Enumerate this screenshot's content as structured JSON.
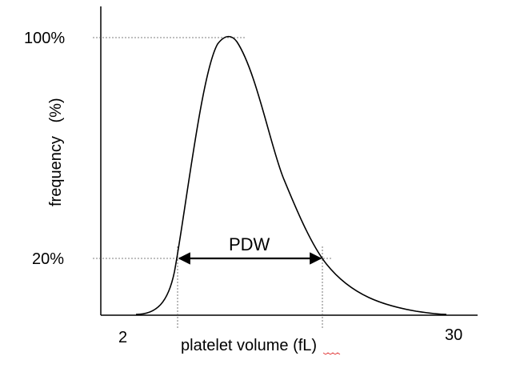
{
  "diagram": {
    "y_axis_label": "frequency   (%)",
    "x_axis_label": "platelet volume (fL)",
    "tick_100": "100%",
    "tick_20": "20%",
    "x_min_label": "2",
    "x_max_label": "30",
    "width_label": "PDW"
  },
  "colors": {
    "line": "#000000",
    "guide": "#555555",
    "underline": "#e03030"
  }
}
